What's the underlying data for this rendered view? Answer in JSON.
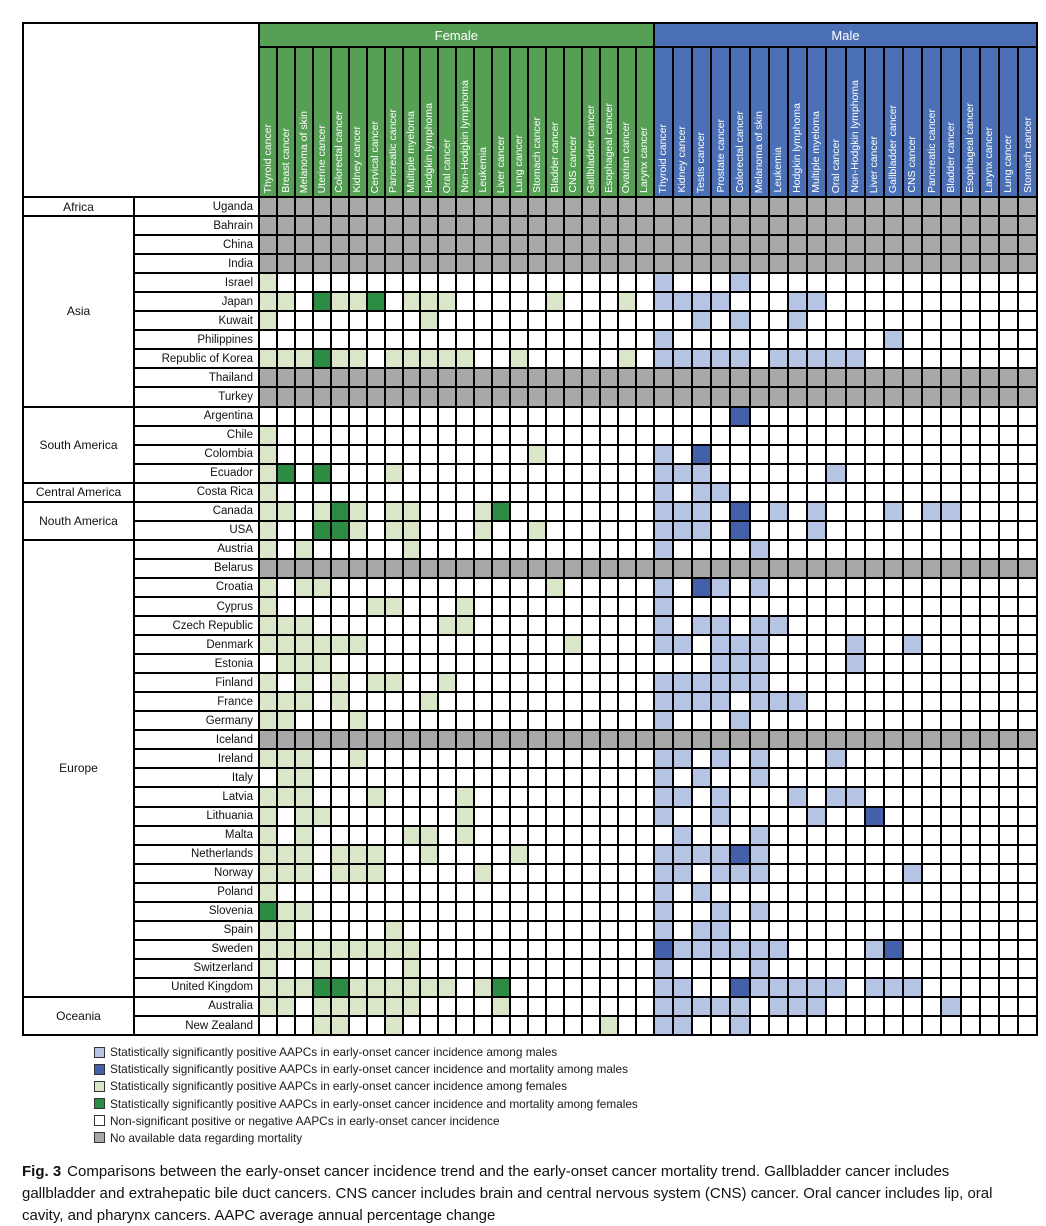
{
  "chart_data": {
    "type": "heatmap",
    "title": "Comparisons between early-onset cancer incidence trend and early-onset cancer mortality trend",
    "sex_groups": [
      {
        "label": "Female",
        "columns": [
          "Thyroid cancer",
          "Breast cancer",
          "Melanoma of skin",
          "Uterine cancer",
          "Colorectal cancer",
          "Kidney cancer",
          "Cervical cancer",
          "Pancreatic cancer",
          "Multiple myeloma",
          "Hodgkin lymphoma",
          "Oral cancer",
          "Non-Hodgkin lymphoma",
          "Leukemia",
          "Liver cancer",
          "Lung cancer",
          "Stomach cancer",
          "Bladder cancer",
          "CNS cancer",
          "Gallbladder cancer",
          "Esophageal cancer",
          "Ovarian cancer",
          "Larynx cancer"
        ]
      },
      {
        "label": "Male",
        "columns": [
          "Thyroid cancer",
          "Kidney cancer",
          "Testis cancer",
          "Prostate cancer",
          "Colorectal cancer",
          "Melanoma of skin",
          "Leukemia",
          "Hodgkin lymphoma",
          "Multiple myeloma",
          "Oral cancer",
          "Non-Hodgkin lymphoma",
          "Liver cancer",
          "Gallbladder cancer",
          "CNS cancer",
          "Pancreatic cancer",
          "Bladder cancer",
          "Esophageal cancer",
          "Larynx cancer",
          "Lung cancer",
          "Stomach cancer"
        ]
      }
    ],
    "cell_codes": {
      "W": "non-significant",
      "A": "no-available-mortality-data",
      "L": "female-incidence-significant",
      "D": "female-incidence-and-mortality-significant",
      "B": "male-incidence-significant",
      "K": "male-incidence-and-mortality-significant"
    },
    "regions": [
      {
        "name": "Africa",
        "countries": [
          "Uganda"
        ]
      },
      {
        "name": "Asia",
        "countries": [
          "Bahrain",
          "China",
          "India",
          "Israel",
          "Japan",
          "Kuwait",
          "Philippines",
          "Republic of Korea",
          "Thailand",
          "Turkey"
        ]
      },
      {
        "name": "South America",
        "countries": [
          "Argentina",
          "Chile",
          "Colombia",
          "Ecuador"
        ]
      },
      {
        "name": "Central America",
        "countries": [
          "Costa Rica"
        ]
      },
      {
        "name": "Nouth America",
        "countries": [
          "Canada",
          "USA"
        ]
      },
      {
        "name": "Europe",
        "countries": [
          "Austria",
          "Belarus",
          "Croatia",
          "Cyprus",
          "Czech Republic",
          "Denmark",
          "Estonia",
          "Finland",
          "France",
          "Germany",
          "Iceland",
          "Ireland",
          "Italy",
          "Latvia",
          "Lithuania",
          "Malta",
          "Netherlands",
          "Norway",
          "Poland",
          "Slovenia",
          "Spain",
          "Sweden",
          "Switzerland",
          "United Kingdom"
        ]
      },
      {
        "name": "Oceania",
        "countries": [
          "Australia",
          "New Zealand"
        ]
      }
    ],
    "rows": [
      {
        "country": "Uganda",
        "female": "AAAAAAAAAAAAAAAAAAAAAA",
        "male": "AAAAAAAAAAAAAAAAAAAA"
      },
      {
        "country": "Bahrain",
        "female": "AAAAAAAAAAAAAAAAAAAAAA",
        "male": "AAAAAAAAAAAAAAAAAAAA"
      },
      {
        "country": "China",
        "female": "AAAAAAAAAAAAAAAAAAAAAA",
        "male": "AAAAAAAAAAAAAAAAAAAA"
      },
      {
        "country": "India",
        "female": "AAAAAAAAAAAAAAAAAAAAAA",
        "male": "AAAAAAAAAAAAAAAAAAAA"
      },
      {
        "country": "Israel",
        "female": "LWWWWWWWWWWWWWWWWWWWWW",
        "male": "BWWWBWWWWWWWWWWWWWWW"
      },
      {
        "country": "Japan",
        "female": "LLWDLLDWLLLWWWWWLWWWLW",
        "male": "BBBBWWWBBWWWWWWWWWWW"
      },
      {
        "country": "Kuwait",
        "female": "LWWWWWWWWLWWWWWWWWWWWW",
        "male": "WWBWBWWBWWWWWWWWWWWW"
      },
      {
        "country": "Philippines",
        "female": "WWWWWWWWWWWWWWWWWWWWWW",
        "male": "BWWWWWWWWWWWBWWWWWWW"
      },
      {
        "country": "Republic of Korea",
        "female": "LLLDLLWLLLLLWWLWWWWWLW",
        "male": "BBBBBWBBBBBWWWWWWWWW"
      },
      {
        "country": "Thailand",
        "female": "AAAAAAAAAAAAAAAAAAAAAA",
        "male": "AAAAAAAAAAAAAAAAAAAA"
      },
      {
        "country": "Turkey",
        "female": "AAAAAAAAAAAAAAAAAAAAAA",
        "male": "AAAAAAAAAAAAAAAAAAAA"
      },
      {
        "country": "Argentina",
        "female": "WWWWWWWWWWWWWWWWWWWWWW",
        "male": "WWWWKWWWWWWWWWWWWWWW"
      },
      {
        "country": "Chile",
        "female": "LWWWWWWWWWWWWWWWWWWWWW",
        "male": "WWWWWWWWWWWWWWWWWWWW"
      },
      {
        "country": "Colombia",
        "female": "LWWWWWWWWWWWWWWLWWWWWW",
        "male": "BWKWWWWWWWWWWWWWWWWW"
      },
      {
        "country": "Ecuador",
        "female": "LDWDWWWLWWWWWWWWWWWWWW",
        "male": "BBBWWWWWWBWWWWWWWWWW"
      },
      {
        "country": "Costa Rica",
        "female": "LWWWWWWWWWWWWWWWWWWWWW",
        "male": "BWBBWWWWWWWWWWWWWWWW"
      },
      {
        "country": "Canada",
        "female": "LLWLDLWLLWWWLDWWWWWWWW",
        "male": "BBBWKWBWBWWWBWBBWWWW"
      },
      {
        "country": "USA",
        "female": "LWWDDLWLLWWWLWWLWWWWWW",
        "male": "BBBWKWWWBWWWWWWWWWWW"
      },
      {
        "country": "Austria",
        "female": "LWLWWWWWLWWWWWWWWWWWWW",
        "male": "BWWWWBWWWWWWWWWWWWWW"
      },
      {
        "country": "Belarus",
        "female": "AAAAAAAAAAAAAAAAAAAAAA",
        "male": "AAAAAAAAAAAAAAAAAAAA"
      },
      {
        "country": "Croatia",
        "female": "LWLLWWWWWWWWWWWWLWWWWW",
        "male": "BWKBWBWWWWWWWWWWWWWW"
      },
      {
        "country": "Cyprus",
        "female": "LWWWWWLLWWWLWWWWWWWWWW",
        "male": "BWWWWWWWWWWWWWWWWWWW"
      },
      {
        "country": "Czech Republic",
        "female": "LLLWWWWWWWLLWWWWWWWWWW",
        "male": "BWBBWBBWWWWWWWWWWWWW"
      },
      {
        "country": "Denmark",
        "female": "LLLLLLWWWWWWWWWWWLWWWW",
        "male": "BBWBBBWWWWBWWBWWWWWW"
      },
      {
        "country": "Estonia",
        "female": "WLLLWWWWWWWWWWWWWWWWWW",
        "male": "WWWBBBWWWWBWWWWWWWWW"
      },
      {
        "country": "Finland",
        "female": "LWLWLWLLWWLWWWWWWWWWWW",
        "male": "BBBBBBWWWWWWWWWWWWWW"
      },
      {
        "country": "France",
        "female": "LLLWLWWWWLWWWWWWWWWWWW",
        "male": "BBBBWBBBWWWWWWWWWWWW"
      },
      {
        "country": "Germany",
        "female": "LLWWWLWWWWWWWWWWWWWWWW",
        "male": "BWWWBWWWWWWWWWWWWWWW"
      },
      {
        "country": "Iceland",
        "female": "AAAAAAAAAAAAAAAAAAAAAA",
        "male": "AAAAAAAAAAAAAAAAAAAA"
      },
      {
        "country": "Ireland",
        "female": "LLLWWLWWWWWWWWWWWWWWWW",
        "male": "BBWBWBWWWBWWWWWWWWWW"
      },
      {
        "country": "Italy",
        "female": "WLLWWWWWWWWWWWWWWWWWWW",
        "male": "BWBWWBWWWWWWWWWWWWWW"
      },
      {
        "country": "Latvia",
        "female": "LLLWWWLWWWWLWWWWWWWWWW",
        "male": "BBWBWWWBWBBWWWWWWWWW"
      },
      {
        "country": "Lithuania",
        "female": "LWLLWWWWWWWLWWWWWWWWWW",
        "male": "BWWBWWWWBWWKWWWWWWWW"
      },
      {
        "country": "Malta",
        "female": "LWLWWWWWLLWLWWWWWWWWWW",
        "male": "WBWWWBWWWWWWWWWWWWWW"
      },
      {
        "country": "Netherlands",
        "female": "LLLWLLLWWLWWWWLWWWWWWW",
        "male": "BBBBKBWWWWWWWWWWWWWW"
      },
      {
        "country": "Norway",
        "female": "LLLWLLLWWWWWLWWWWWWWWW",
        "male": "BBWBBBWWWWWWWBWWWWWW"
      },
      {
        "country": "Poland",
        "female": "LWWWWWWWWWWWWWWWWWWWWW",
        "male": "BWBWWWWWWWWWWWWWWWWW"
      },
      {
        "country": "Slovenia",
        "female": "DLLWWWWWWWWWWWWWWWWWWW",
        "male": "BWWBWBWWWWWWWWWWWWWW"
      },
      {
        "country": "Spain",
        "female": "LLWWWWWLWWWWWWWWWWWWWW",
        "male": "BWBBWWWWWWWWWWWWWWWW"
      },
      {
        "country": "Sweden",
        "female": "LLLLLLLLLWWWWWWWWWWWWW",
        "male": "KBBBBBBWWWWBKWWWWWWW"
      },
      {
        "country": "Switzerland",
        "female": "LWWLWWWWLWWWWWWWWWWWWW",
        "male": "BWWWWBWWWWWWWWWWWWWW"
      },
      {
        "country": "United Kingdom",
        "female": "LLLDDLLLLLLWLDWWWWWWWW",
        "male": "BBWWKBBBBBWBBBWWWWWW"
      },
      {
        "country": "Australia",
        "female": "LLWLLLLLLWWWWLWWWWWWWW",
        "male": "BBBBBWBBBWWWWWWBWWWW"
      },
      {
        "country": "New Zealand",
        "female": "WWWLLWWLWWWWWWWWWWWLWW",
        "male": "BBWWBWWWWWWWWWWWWWWW"
      }
    ]
  },
  "colors": {
    "W": "#ffffff",
    "A": "#a8a8a8",
    "L": "#d9e7c8",
    "D": "#2d8c43",
    "B": "#b5c4e4",
    "K": "#4560aa",
    "female_header": "#56a055",
    "male_header": "#4c70b6"
  },
  "legend": {
    "items": [
      {
        "swatch": "B",
        "label": "Statistically significantly positive AAPCs in early-onset cancer incidence among males"
      },
      {
        "swatch": "K",
        "label": "Statistically significantly positive AAPCs in early-onset cancer incidence and mortality among males"
      },
      {
        "swatch": "L",
        "label": "Statistically significantly positive AAPCs in early-onset cancer incidence among females"
      },
      {
        "swatch": "D",
        "label": "Statistically significantly positive AAPCs in early-onset cancer incidence and mortality among females"
      },
      {
        "swatch": "W",
        "label": "Non-significant positive or negative AAPCs in early-onset cancer incidence"
      },
      {
        "swatch": "A",
        "label": "No available data regarding mortality"
      }
    ]
  },
  "caption": {
    "tag": "Fig. 3",
    "text": "Comparisons between the early-onset cancer incidence trend and the early-onset cancer mortality trend. Gallbladder cancer includes gallbladder and extrahepatic bile duct cancers. CNS cancer includes brain and central nervous system (CNS) cancer. Oral cancer includes lip, oral cavity, and pharynx cancers. AAPC average annual percentage change"
  }
}
